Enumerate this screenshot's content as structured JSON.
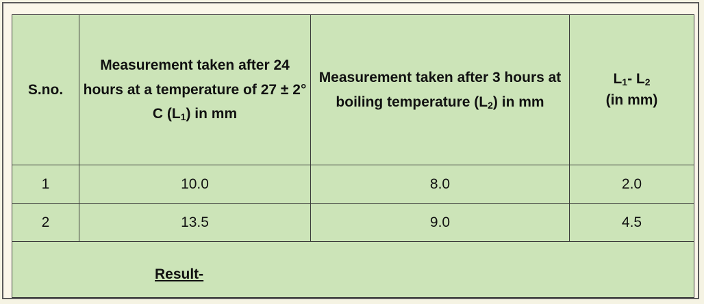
{
  "table": {
    "headers": {
      "sno": "S.no.",
      "col1_text": "Measurement taken after 24 hours at a temperature of 27 ± 2° C (L",
      "col1_sub": "1",
      "col1_tail": ") in mm",
      "col2_text": "Measurement taken after 3 hours at boiling temperature (L",
      "col2_sub": "2",
      "col2_tail": ") in mm",
      "col3_a": "L",
      "col3_a_sub": "1",
      "col3_mid": "- L",
      "col3_b_sub": "2",
      "col3_unit": "(in mm)"
    },
    "rows": [
      {
        "sno": "1",
        "l1": "10.0",
        "l2": "8.0",
        "diff": "2.0"
      },
      {
        "sno": "2",
        "l1": "13.5",
        "l2": "9.0",
        "diff": "4.5"
      }
    ],
    "result_label": "Result-"
  }
}
